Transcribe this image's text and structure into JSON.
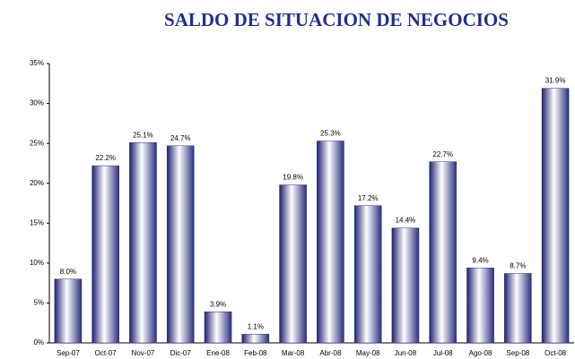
{
  "chart_data": {
    "type": "bar",
    "title": "SALDO DE SITUACION DE NEGOCIOS",
    "categories": [
      "Sep-07",
      "Oct-07",
      "Nov-07",
      "Dic-07",
      "Ene-08",
      "Feb-08",
      "Mar-08",
      "Abr-08",
      "May-08",
      "Jun-08",
      "Jul-08",
      "Ago-08",
      "Sep-08",
      "Oct-08"
    ],
    "values": [
      8.0,
      22.2,
      25.1,
      24.7,
      3.9,
      1.1,
      19.8,
      25.3,
      17.2,
      14.4,
      22.7,
      9.4,
      8.7,
      31.9
    ],
    "value_labels": [
      "8.0%",
      "22.2%",
      "25.1%",
      "24.7%",
      "3.9%",
      "1.1%",
      "19.8%",
      "25.3%",
      "17.2%",
      "14.4%",
      "22.7%",
      "9.4%",
      "8.7%",
      "31.9%"
    ],
    "color": "#2a2f80",
    "ylim": [
      0,
      35
    ],
    "yticks": [
      {
        "value": 0,
        "label": "0%"
      },
      {
        "value": 5,
        "label": "5%"
      },
      {
        "value": 10,
        "label": "10%"
      },
      {
        "value": 15,
        "label": "15%"
      },
      {
        "value": 20,
        "label": "20%"
      },
      {
        "value": 25,
        "label": "25%"
      },
      {
        "value": 30,
        "label": "30%"
      },
      {
        "value": 35,
        "label": "35%"
      }
    ],
    "grid": false
  }
}
